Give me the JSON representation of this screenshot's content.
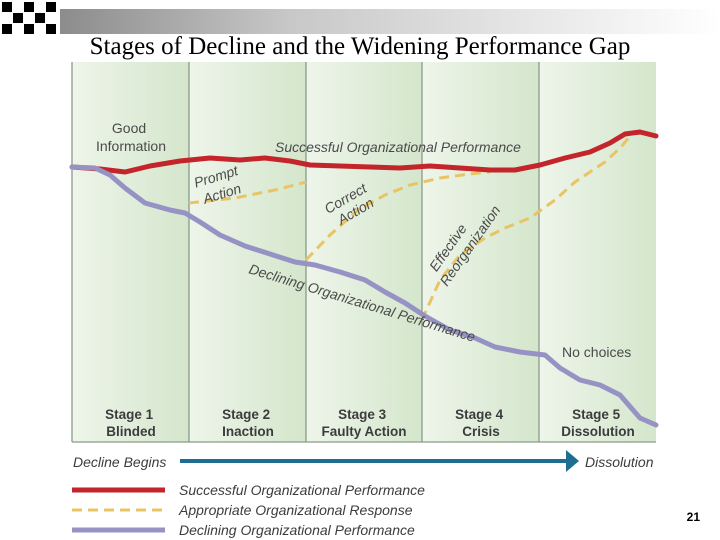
{
  "slide": {
    "title": "Stages of Decline and the Widening Performance Gap",
    "page_number": "21"
  },
  "diagram": {
    "lines": {
      "successful": "Successful Organizational Performance",
      "declining": "Declining Organizational Performance"
    },
    "labels": {
      "good_information": [
        "Good",
        "Information"
      ],
      "prompt_action": [
        "Prompt",
        "Action"
      ],
      "correct_action": [
        "Correct",
        "Action"
      ],
      "effective_reorganization": [
        "Effective",
        "Reorganization"
      ],
      "no_choices": "No choices"
    },
    "stages": [
      {
        "number": "Stage 1",
        "name": "Blinded"
      },
      {
        "number": "Stage 2",
        "name": "Inaction"
      },
      {
        "number": "Stage 3",
        "name": "Faulty Action"
      },
      {
        "number": "Stage 4",
        "name": "Crisis"
      },
      {
        "number": "Stage 5",
        "name": "Dissolution"
      }
    ],
    "timeline": {
      "start": "Decline Begins",
      "end": "Dissolution"
    },
    "legend": [
      {
        "label": "Successful Organizational Performance",
        "color": "#c4252a",
        "style": "solid"
      },
      {
        "label": "Appropriate Organizational Response",
        "color": "#e9c464",
        "style": "dashed"
      },
      {
        "label": "Declining Organizational Performance",
        "color": "#9693c4",
        "style": "solid"
      }
    ]
  }
}
